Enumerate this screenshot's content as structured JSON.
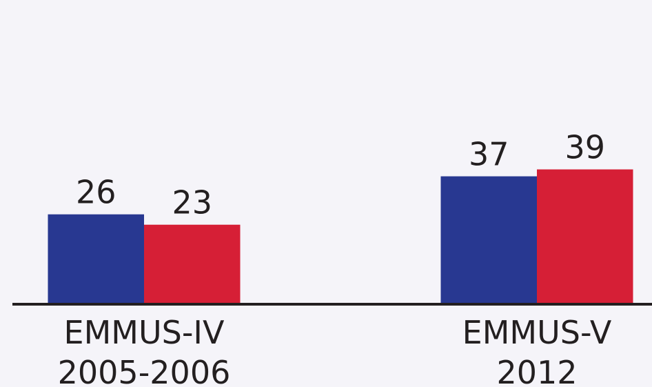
{
  "chart_data": {
    "type": "bar",
    "categories": [
      [
        "EMMUS-IV",
        "2005-2006"
      ],
      [
        "EMMUS-V",
        "2012"
      ]
    ],
    "series": [
      {
        "color": "#283891",
        "values": [
          26,
          37
        ]
      },
      {
        "color": "#d61f36",
        "values": [
          23,
          39
        ]
      }
    ],
    "ylim": [
      0,
      88
    ]
  }
}
